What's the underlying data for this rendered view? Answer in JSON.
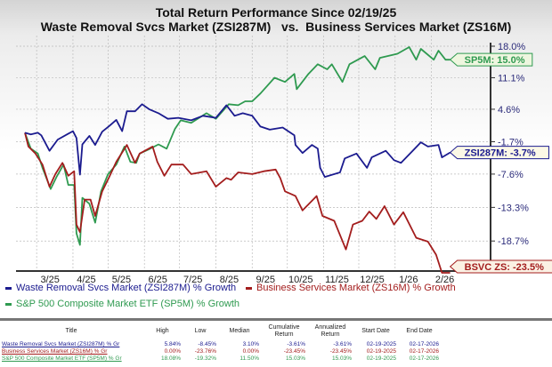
{
  "title_line1": "Total Return Performance Since 02/19/25",
  "title_line2": "Waste Removal Svcs Market (ZSI287M)   vs.  Business Services Market (ZS16M)",
  "colors": {
    "blue": "#1b1b8f",
    "red": "#a31d1d",
    "green": "#2f9a50"
  },
  "chart_data": {
    "type": "line",
    "title": "Total Return Performance Since 02/19/25",
    "y_scale": "log",
    "y_ticks": [
      "18.0%",
      "11.1%",
      "4.6%",
      "-1.7%",
      "-7.6%",
      "-13.3%",
      "-18.7%"
    ],
    "y_tick_values": [
      18.0,
      11.1,
      4.6,
      -1.7,
      -7.6,
      -13.3,
      -18.7
    ],
    "x_ticks": [
      "3/25",
      "4/25",
      "5/25",
      "6/25",
      "7/25",
      "8/25",
      "9/25",
      "10/25",
      "11/25",
      "12/25",
      "1/26",
      "2/26"
    ],
    "x_range": [
      "2025-02-19",
      "2026-02-17"
    ],
    "grid": true,
    "legend": "bottom",
    "series": [
      {
        "name": "Waste Removal Svcs Market (ZSI287M) % Growth",
        "color": "blue",
        "end_label": "ZSI287M: -3.7%",
        "points": [
          [
            "2025-02-19",
            0
          ],
          [
            "2025-02-24",
            -0.3
          ],
          [
            "2025-03-02",
            0.0
          ],
          [
            "2025-03-05",
            -0.5
          ],
          [
            "2025-03-12",
            -3.4
          ],
          [
            "2025-03-19",
            -1.3
          ],
          [
            "2025-03-27",
            -0.3
          ],
          [
            "2025-04-01",
            0.3
          ],
          [
            "2025-04-04",
            -1.0
          ],
          [
            "2025-04-07",
            -7.7
          ],
          [
            "2025-04-09",
            -2.2
          ],
          [
            "2025-04-15",
            -0.6
          ],
          [
            "2025-04-20",
            -2.3
          ],
          [
            "2025-04-26",
            0.2
          ],
          [
            "2025-05-02",
            1.3
          ],
          [
            "2025-05-08",
            2.5
          ],
          [
            "2025-05-13",
            0.3
          ],
          [
            "2025-05-17",
            4.2
          ],
          [
            "2025-05-24",
            4.2
          ],
          [
            "2025-05-30",
            5.6
          ],
          [
            "2025-06-05",
            4.6
          ],
          [
            "2025-06-13",
            3.8
          ],
          [
            "2025-06-21",
            2.7
          ],
          [
            "2025-06-30",
            2.9
          ],
          [
            "2025-07-11",
            2.4
          ],
          [
            "2025-07-21",
            3.3
          ],
          [
            "2025-08-01",
            2.9
          ],
          [
            "2025-08-10",
            5.4
          ],
          [
            "2025-08-17",
            3.3
          ],
          [
            "2025-08-24",
            3.8
          ],
          [
            "2025-09-01",
            3.3
          ],
          [
            "2025-09-08",
            1.2
          ],
          [
            "2025-09-16",
            0.6
          ],
          [
            "2025-09-27",
            1.0
          ],
          [
            "2025-10-07",
            -0.5
          ],
          [
            "2025-10-08",
            -2.3
          ],
          [
            "2025-10-14",
            -3.8
          ],
          [
            "2025-10-22",
            -2.3
          ],
          [
            "2025-10-27",
            -3.0
          ],
          [
            "2025-10-29",
            -6.5
          ],
          [
            "2025-11-02",
            -8.1
          ],
          [
            "2025-11-15",
            -7.3
          ],
          [
            "2025-11-19",
            -4.8
          ],
          [
            "2025-11-29",
            -3.9
          ],
          [
            "2025-12-08",
            -6.5
          ],
          [
            "2025-12-12",
            -4.6
          ],
          [
            "2025-12-24",
            -3.4
          ],
          [
            "2025-12-31",
            -5.1
          ],
          [
            "2026-01-06",
            -5.6
          ],
          [
            "2026-01-16",
            -3.4
          ],
          [
            "2026-01-23",
            -1.8
          ],
          [
            "2026-01-29",
            -2.6
          ],
          [
            "2026-02-07",
            -2.3
          ],
          [
            "2026-02-10",
            -4.6
          ],
          [
            "2026-02-17",
            -3.7
          ]
        ]
      },
      {
        "name": "Business Services Market (ZS16M) % Growth",
        "color": "red",
        "end_label": "BSVC ZS: -23.5%",
        "points": [
          [
            "2025-02-19",
            0
          ],
          [
            "2025-02-22",
            -2.6
          ],
          [
            "2025-02-28",
            -3.9
          ],
          [
            "2025-03-06",
            -5.9
          ],
          [
            "2025-03-12",
            -9.8
          ],
          [
            "2025-03-17",
            -7.6
          ],
          [
            "2025-03-23",
            -5.6
          ],
          [
            "2025-03-28",
            -7.9
          ],
          [
            "2025-04-02",
            -7.1
          ],
          [
            "2025-04-04",
            -16.1
          ],
          [
            "2025-04-07",
            -17.3
          ],
          [
            "2025-04-11",
            -12.0
          ],
          [
            "2025-04-16",
            -12.0
          ],
          [
            "2025-04-20",
            -14.7
          ],
          [
            "2025-04-26",
            -10.6
          ],
          [
            "2025-05-02",
            -8.1
          ],
          [
            "2025-05-08",
            -5.4
          ],
          [
            "2025-05-17",
            -2.3
          ],
          [
            "2025-05-24",
            -5.6
          ],
          [
            "2025-05-28",
            -3.9
          ],
          [
            "2025-06-08",
            -2.6
          ],
          [
            "2025-06-12",
            -5.4
          ],
          [
            "2025-06-18",
            -7.9
          ],
          [
            "2025-06-24",
            -5.9
          ],
          [
            "2025-07-04",
            -5.9
          ],
          [
            "2025-07-11",
            -7.6
          ],
          [
            "2025-07-24",
            -7.1
          ],
          [
            "2025-08-01",
            -9.8
          ],
          [
            "2025-08-10",
            -8.3
          ],
          [
            "2025-08-14",
            -8.6
          ],
          [
            "2025-08-20",
            -7.3
          ],
          [
            "2025-09-01",
            -7.6
          ],
          [
            "2025-09-11",
            -7.1
          ],
          [
            "2025-09-21",
            -6.8
          ],
          [
            "2025-09-25",
            -8.3
          ],
          [
            "2025-09-29",
            -10.6
          ],
          [
            "2025-10-08",
            -11.4
          ],
          [
            "2025-10-14",
            -13.8
          ],
          [
            "2025-10-26",
            -11.4
          ],
          [
            "2025-10-31",
            -14.7
          ],
          [
            "2025-11-10",
            -15.5
          ],
          [
            "2025-11-20",
            -20.0
          ],
          [
            "2025-11-26",
            -16.1
          ],
          [
            "2025-12-04",
            -15.5
          ],
          [
            "2025-12-10",
            -14.0
          ],
          [
            "2025-12-16",
            -15.2
          ],
          [
            "2025-12-23",
            -13.1
          ],
          [
            "2025-12-31",
            -16.1
          ],
          [
            "2026-01-08",
            -14.1
          ],
          [
            "2026-01-19",
            -18.2
          ],
          [
            "2026-01-29",
            -18.8
          ],
          [
            "2026-02-05",
            -20.8
          ],
          [
            "2026-02-10",
            -23.5
          ],
          [
            "2026-02-17",
            -23.5
          ]
        ]
      },
      {
        "name": "S&P 500 Composite Market ETF (SP5M) % Growth",
        "color": "green",
        "end_label": "SP5M: 15.0%",
        "points": [
          [
            "2025-02-19",
            0
          ],
          [
            "2025-02-24",
            -3.0
          ],
          [
            "2025-03-02",
            -3.9
          ],
          [
            "2025-03-06",
            -6.5
          ],
          [
            "2025-03-13",
            -10.2
          ],
          [
            "2025-03-18",
            -8.1
          ],
          [
            "2025-03-24",
            -5.9
          ],
          [
            "2025-03-28",
            -9.5
          ],
          [
            "2025-04-02",
            -9.5
          ],
          [
            "2025-04-04",
            -17.5
          ],
          [
            "2025-04-07",
            -19.3
          ],
          [
            "2025-04-09",
            -11.7
          ],
          [
            "2025-04-15",
            -12.7
          ],
          [
            "2025-04-20",
            -15.8
          ],
          [
            "2025-04-25",
            -10.6
          ],
          [
            "2025-05-01",
            -7.6
          ],
          [
            "2025-05-08",
            -5.9
          ],
          [
            "2025-05-15",
            -2.6
          ],
          [
            "2025-05-20",
            -5.4
          ],
          [
            "2025-05-25",
            -5.6
          ],
          [
            "2025-05-28",
            -3.9
          ],
          [
            "2025-06-05",
            -3.1
          ],
          [
            "2025-06-13",
            -2.2
          ],
          [
            "2025-06-20",
            -3.0
          ],
          [
            "2025-06-27",
            0.7
          ],
          [
            "2025-07-02",
            2.4
          ],
          [
            "2025-07-11",
            1.9
          ],
          [
            "2025-07-24",
            3.8
          ],
          [
            "2025-08-01",
            2.7
          ],
          [
            "2025-08-12",
            5.6
          ],
          [
            "2025-08-20",
            5.4
          ],
          [
            "2025-08-26",
            6.2
          ],
          [
            "2025-09-01",
            6.2
          ],
          [
            "2025-09-08",
            7.8
          ],
          [
            "2025-09-20",
            11.1
          ],
          [
            "2025-09-29",
            10.2
          ],
          [
            "2025-10-07",
            11.9
          ],
          [
            "2025-10-09",
            8.7
          ],
          [
            "2025-10-19",
            11.9
          ],
          [
            "2025-10-27",
            14.0
          ],
          [
            "2025-11-04",
            12.9
          ],
          [
            "2025-11-08",
            14.0
          ],
          [
            "2025-11-17",
            10.2
          ],
          [
            "2025-11-23",
            14.0
          ],
          [
            "2025-12-06",
            15.8
          ],
          [
            "2025-12-15",
            12.9
          ],
          [
            "2025-12-19",
            15.4
          ],
          [
            "2026-01-03",
            16.3
          ],
          [
            "2026-01-13",
            17.8
          ],
          [
            "2026-01-19",
            15.0
          ],
          [
            "2026-01-23",
            17.4
          ],
          [
            "2026-02-03",
            15.0
          ],
          [
            "2026-02-07",
            17.0
          ],
          [
            "2026-02-13",
            15.0
          ],
          [
            "2026-02-17",
            15.0
          ]
        ]
      }
    ]
  },
  "table": {
    "headers": [
      "Title",
      "High",
      "Low",
      "Median",
      "Cumulative Return",
      "Annualized Return",
      "Start Date",
      "End Date"
    ],
    "rows": [
      {
        "color": "blue",
        "cells": [
          "Waste Removal Svcs Market (ZSI287M) % Gr",
          "5.84%",
          "-8.45%",
          "3.10%",
          "-3.61%",
          "-3.61%",
          "02-19-2025",
          "02-17-2026"
        ]
      },
      {
        "color": "red",
        "cells": [
          "Business Services Market (ZS16M) % Gr",
          "0.00%",
          "-23.76%",
          "0.00%",
          "-23.45%",
          "-23.45%",
          "02-19-2025",
          "02-17-2026"
        ]
      },
      {
        "color": "green",
        "cells": [
          "S&P 500 Composite Market ETF (SP5M) % Gr",
          "18.08%",
          "-19.32%",
          "11.50%",
          "15.03%",
          "15.03%",
          "02-19-2025",
          "02-17-2026"
        ]
      }
    ]
  }
}
